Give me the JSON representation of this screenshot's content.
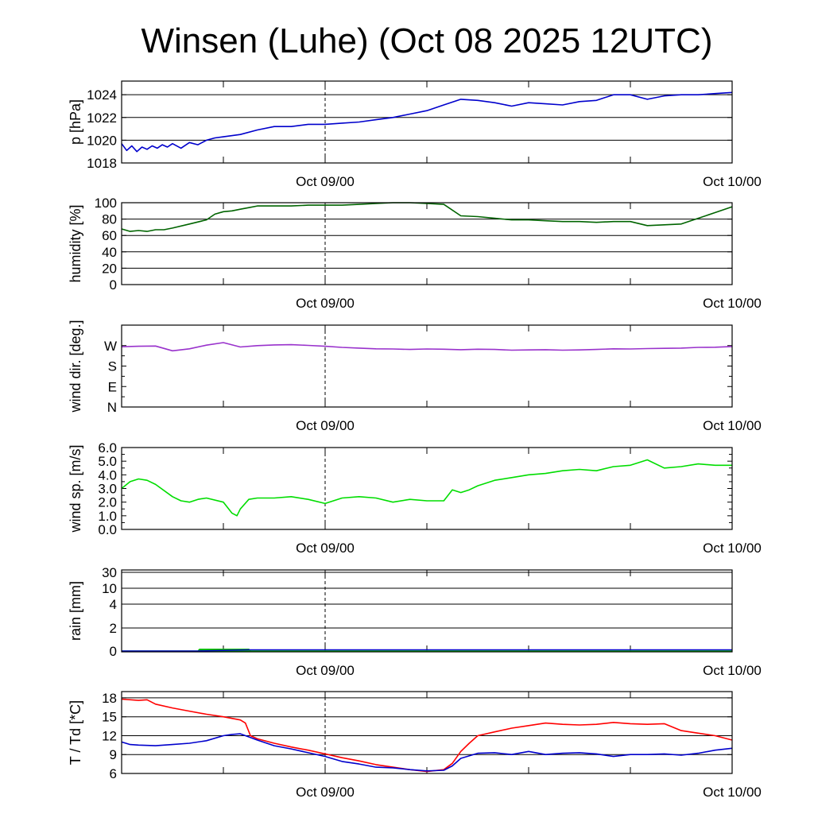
{
  "chart_data": [
    {
      "type": "line",
      "title": "Winsen (Luhe) (Oct 08 2025 12UTC)",
      "ylabel": "p [hPa]",
      "xlim": [
        0,
        36
      ],
      "x_tick_values": [
        12,
        36
      ],
      "x_tick_labels": [
        "Oct 09/00",
        "Oct 10/00"
      ],
      "marker_x": 12,
      "ylim": [
        1018,
        1025.2
      ],
      "y_ticks": [
        1018,
        1020,
        1022,
        1024
      ],
      "y_tick_labels": [
        "1018",
        "1020",
        "1022",
        "1024"
      ],
      "grid": true,
      "series": [
        {
          "color": "#0000cc",
          "x": [
            0,
            0.3,
            0.6,
            0.9,
            1.2,
            1.5,
            1.8,
            2.1,
            2.4,
            2.7,
            3.0,
            3.5,
            4.0,
            4.5,
            5.0,
            5.5,
            6.0,
            7.0,
            8.0,
            9.0,
            10.0,
            11.0,
            12.0,
            13.0,
            14.0,
            15.0,
            16.0,
            17.0,
            18.0,
            19.0,
            20.0,
            21.0,
            22.0,
            23.0,
            24.0,
            25.0,
            26.0,
            27.0,
            28.0,
            29.0,
            30.0,
            31.0,
            32.0,
            33.0,
            34.0,
            35.0,
            36.0
          ],
          "values": [
            1019.7,
            1019.1,
            1019.5,
            1019.0,
            1019.4,
            1019.2,
            1019.5,
            1019.3,
            1019.6,
            1019.4,
            1019.7,
            1019.3,
            1019.8,
            1019.6,
            1020.0,
            1020.2,
            1020.3,
            1020.5,
            1020.9,
            1021.2,
            1021.2,
            1021.4,
            1021.4,
            1021.5,
            1021.6,
            1021.8,
            1022.0,
            1022.3,
            1022.6,
            1023.1,
            1023.6,
            1023.5,
            1023.3,
            1023.0,
            1023.3,
            1023.2,
            1023.1,
            1023.4,
            1023.5,
            1024.0,
            1024.0,
            1023.6,
            1023.9,
            1024.0,
            1024.0,
            1024.1,
            1024.2
          ]
        }
      ]
    },
    {
      "type": "line",
      "ylabel": "humidity [%]",
      "xlim": [
        0,
        36
      ],
      "x_tick_values": [
        12,
        36
      ],
      "x_tick_labels": [
        "Oct 09/00",
        "Oct 10/00"
      ],
      "marker_x": 12,
      "ylim": [
        0,
        100
      ],
      "y_ticks": [
        0,
        20,
        40,
        60,
        80,
        100
      ],
      "y_tick_labels": [
        "0",
        "20",
        "40",
        "60",
        "80",
        "100"
      ],
      "grid": true,
      "series": [
        {
          "color": "#006400",
          "x": [
            0,
            0.5,
            1.0,
            1.5,
            2.0,
            2.5,
            3.0,
            4.0,
            5.0,
            5.5,
            6.0,
            6.5,
            7.0,
            7.5,
            8.0,
            9.0,
            10.0,
            11.0,
            12.0,
            13.0,
            14.0,
            15.0,
            16.0,
            17.0,
            18.0,
            19.0,
            20.0,
            21.0,
            22.0,
            23.0,
            24.0,
            25.0,
            26.0,
            27.0,
            28.0,
            29.0,
            30.0,
            31.0,
            32.0,
            33.0,
            34.0,
            35.0,
            36.0
          ],
          "values": [
            68,
            65,
            66,
            65,
            67,
            67,
            69,
            74,
            79,
            86,
            89,
            90,
            92,
            94,
            96,
            96,
            96,
            97,
            97,
            97,
            98,
            99,
            100,
            100,
            99,
            98,
            84,
            83,
            81,
            79,
            79,
            78,
            77,
            77,
            76,
            77,
            77,
            72,
            73,
            74,
            81,
            88,
            95
          ]
        }
      ]
    },
    {
      "type": "line",
      "ylabel": "wind dir. [deg.]",
      "xlim": [
        0,
        36
      ],
      "x_tick_values": [
        12,
        36
      ],
      "x_tick_labels": [
        "Oct 09/00",
        "Oct 10/00"
      ],
      "marker_x": 12,
      "ylim": [
        0,
        360
      ],
      "y_ticks": [
        0,
        90,
        180,
        270
      ],
      "y_tick_labels": [
        "N",
        "E",
        "S",
        "W"
      ],
      "grid": false,
      "series": [
        {
          "color": "#9932cc",
          "x": [
            0,
            1,
            2,
            3,
            4,
            5,
            6,
            7,
            8,
            9,
            10,
            11,
            12,
            13,
            14,
            15,
            16,
            17,
            18,
            19,
            20,
            21,
            22,
            23,
            24,
            25,
            26,
            27,
            28,
            29,
            30,
            31,
            32,
            33,
            34,
            35,
            36
          ],
          "values": [
            265,
            267,
            268,
            247,
            256,
            272,
            283,
            264,
            270,
            273,
            274,
            271,
            267,
            262,
            259,
            256,
            255,
            253,
            255,
            254,
            252,
            254,
            253,
            250,
            251,
            252,
            250,
            251,
            253,
            256,
            255,
            257,
            258,
            259,
            262,
            263,
            266
          ]
        }
      ]
    },
    {
      "type": "line",
      "ylabel": "wind sp. [m/s]",
      "xlim": [
        0,
        36
      ],
      "x_tick_values": [
        12,
        36
      ],
      "x_tick_labels": [
        "Oct 09/00",
        "Oct 10/00"
      ],
      "marker_x": 12,
      "ylim": [
        0,
        6
      ],
      "y_ticks": [
        0,
        1,
        2,
        3,
        4,
        5,
        6
      ],
      "y_tick_labels": [
        "0.0",
        "1.0",
        "2.0",
        "3.0",
        "4.0",
        "5.0",
        "6.0"
      ],
      "grid": false,
      "series": [
        {
          "color": "#00dd00",
          "x": [
            0,
            0.5,
            1.0,
            1.5,
            2.0,
            3.0,
            3.5,
            4.0,
            4.5,
            5.0,
            6.0,
            6.5,
            6.8,
            7.0,
            7.5,
            8.0,
            9.0,
            10.0,
            11.0,
            12.0,
            13.0,
            14.0,
            15.0,
            16.0,
            17.0,
            18.0,
            19.0,
            19.5,
            20.0,
            20.5,
            21.0,
            22.0,
            23.0,
            24.0,
            25.0,
            26.0,
            27.0,
            28.0,
            29.0,
            30.0,
            31.0,
            32.0,
            33.0,
            34.0,
            35.0,
            36.0
          ],
          "values": [
            3.0,
            3.5,
            3.7,
            3.6,
            3.3,
            2.4,
            2.1,
            2.0,
            2.2,
            2.3,
            2.0,
            1.2,
            1.0,
            1.5,
            2.2,
            2.3,
            2.3,
            2.4,
            2.2,
            1.9,
            2.3,
            2.4,
            2.3,
            2.0,
            2.2,
            2.1,
            2.1,
            2.9,
            2.7,
            2.9,
            3.2,
            3.6,
            3.8,
            4.0,
            4.1,
            4.3,
            4.4,
            4.3,
            4.6,
            4.7,
            5.1,
            4.5,
            4.6,
            4.8,
            4.7,
            4.7
          ]
        }
      ]
    },
    {
      "type": "area",
      "ylabel": "rain [mm]",
      "xlim": [
        0,
        36
      ],
      "x_tick_values": [
        12,
        36
      ],
      "x_tick_labels": [
        "Oct 09/00",
        "Oct 10/00"
      ],
      "marker_x": 12,
      "y_scale": "nonlinear",
      "y_ticks": [
        0,
        2,
        4,
        10,
        30
      ],
      "y_tick_labels": [
        "0",
        "2",
        "4",
        "10",
        "30"
      ],
      "grid": true,
      "series": [
        {
          "color": "#00bb00",
          "x": [
            0,
            4.5,
            4.6,
            7.5,
            7.6,
            36
          ],
          "values": [
            0,
            0,
            0.15,
            0.15,
            0,
            0
          ]
        },
        {
          "color": "#0000cc",
          "x": [
            0,
            4.5,
            7.5,
            36
          ],
          "values": [
            0,
            0,
            0.1,
            0.1
          ]
        }
      ]
    },
    {
      "type": "line",
      "ylabel": "T / Td [*C]",
      "xlim": [
        0,
        36
      ],
      "x_tick_values": [
        12,
        36
      ],
      "x_tick_labels": [
        "Oct 09/00",
        "Oct 10/00"
      ],
      "marker_x": 12,
      "ylim": [
        6,
        19
      ],
      "y_ticks": [
        6,
        9,
        12,
        15,
        18
      ],
      "y_tick_labels": [
        "6",
        "9",
        "12",
        "15",
        "18"
      ],
      "grid": true,
      "series": [
        {
          "color": "#ff0000",
          "x": [
            0,
            1,
            1.5,
            2,
            3,
            4,
            5,
            6,
            7,
            7.3,
            7.6,
            8,
            9,
            10,
            11,
            12,
            13,
            14,
            15,
            16,
            17,
            18,
            19,
            19.5,
            20,
            20.5,
            21,
            22,
            23,
            24,
            25,
            26,
            27,
            28,
            29,
            30,
            31,
            32,
            33,
            34,
            35,
            36
          ],
          "values": [
            17.8,
            17.6,
            17.7,
            17.0,
            16.4,
            15.9,
            15.4,
            15.0,
            14.5,
            14.0,
            12.0,
            11.5,
            10.8,
            10.2,
            9.7,
            9.1,
            8.5,
            8.0,
            7.4,
            7.0,
            6.6,
            6.3,
            6.6,
            7.6,
            9.5,
            10.8,
            12.0,
            12.6,
            13.2,
            13.6,
            14.0,
            13.8,
            13.7,
            13.8,
            14.1,
            13.9,
            13.8,
            13.9,
            12.8,
            12.4,
            12.0,
            11.3
          ]
        },
        {
          "color": "#0000cc",
          "x": [
            0,
            0.5,
            1,
            2,
            3,
            4,
            5,
            6,
            6.5,
            7,
            7.5,
            8,
            9,
            10,
            11,
            12,
            13,
            14,
            15,
            16,
            17,
            18,
            19,
            19.5,
            20,
            21,
            22,
            23,
            24,
            25,
            26,
            27,
            28,
            29,
            30,
            31,
            32,
            33,
            34,
            35,
            36
          ],
          "values": [
            11.0,
            10.6,
            10.5,
            10.4,
            10.6,
            10.8,
            11.2,
            12.0,
            12.2,
            12.3,
            11.8,
            11.3,
            10.4,
            9.9,
            9.3,
            8.7,
            7.9,
            7.5,
            7.0,
            6.9,
            6.6,
            6.4,
            6.5,
            7.2,
            8.4,
            9.2,
            9.3,
            9.0,
            9.5,
            9.0,
            9.2,
            9.3,
            9.1,
            8.7,
            9.0,
            9.0,
            9.1,
            8.9,
            9.2,
            9.7,
            10.0
          ]
        }
      ]
    }
  ]
}
